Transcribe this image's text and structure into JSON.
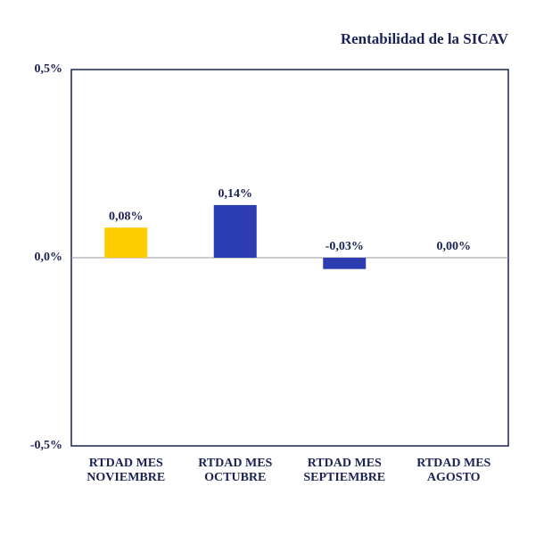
{
  "chart_data": {
    "type": "bar",
    "title": "Rentabilidad de la SICAV",
    "categories": [
      [
        "RTDAD MES",
        "NOVIEMBRE"
      ],
      [
        "RTDAD MES",
        "OCTUBRE"
      ],
      [
        "RTDAD MES",
        "SEPTIEMBRE"
      ],
      [
        "RTDAD MES",
        "AGOSTO"
      ]
    ],
    "values": [
      0.08,
      0.14,
      -0.03,
      0.0
    ],
    "value_labels": [
      "0,08%",
      "0,14%",
      "-0,03%",
      "0,00%"
    ],
    "colors": [
      "#ffcc00",
      "#2b3db0",
      "#2b3db0",
      "#2b3db0"
    ],
    "ylim": [
      -0.5,
      0.5
    ],
    "yticks": [
      {
        "value": 0.5,
        "label": "0,5%"
      },
      {
        "value": 0,
        "label": "0,0%"
      },
      {
        "value": -0.5,
        "label": "-0,5%"
      }
    ],
    "grid": false
  }
}
